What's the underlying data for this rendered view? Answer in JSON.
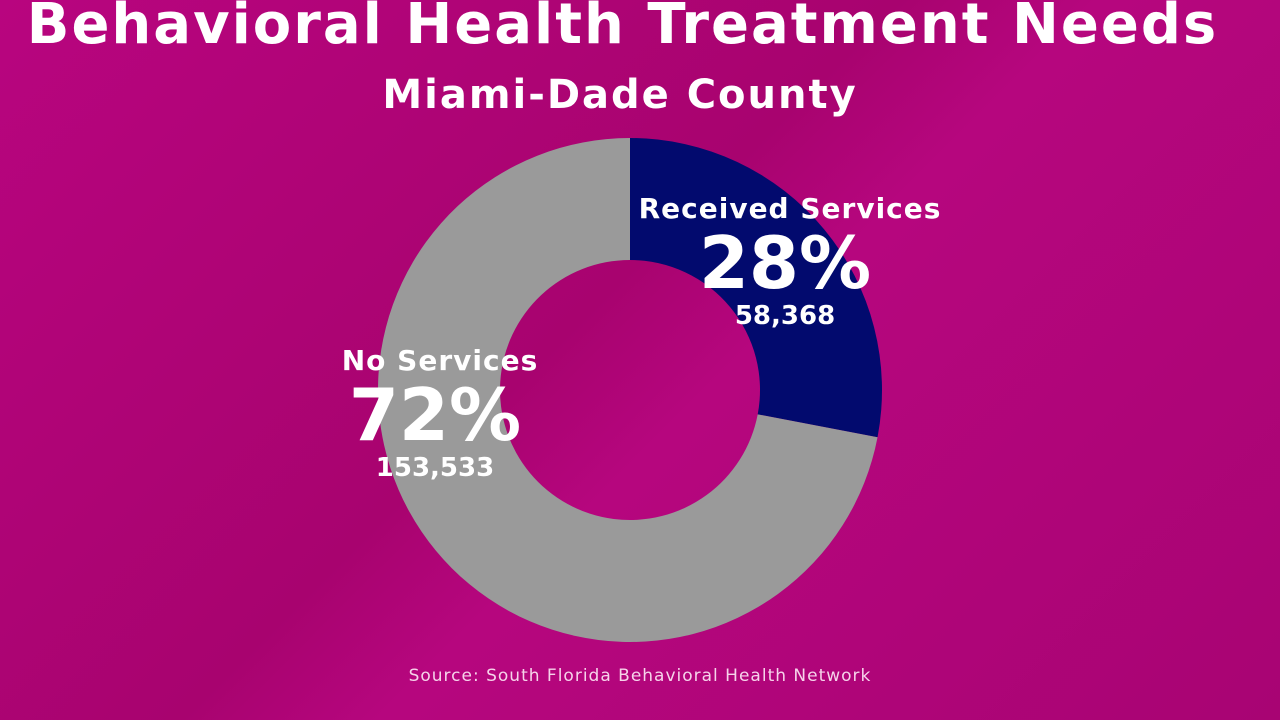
{
  "chart_data": {
    "type": "pie",
    "style": "donut",
    "title": "Behavioral Health Treatment Needs",
    "subtitle": "Miami-Dade County",
    "slices": [
      {
        "label": "Received Services",
        "percent_label": "28%",
        "percent": 28,
        "count": "58,368",
        "color": "#020a6e"
      },
      {
        "label": "No Services",
        "percent_label": "72%",
        "percent": 72,
        "count": "153,533",
        "color": "#9a9a9a"
      }
    ],
    "source": "Source: South Florida Behavioral Health Network",
    "background_color": "#b0057a"
  }
}
